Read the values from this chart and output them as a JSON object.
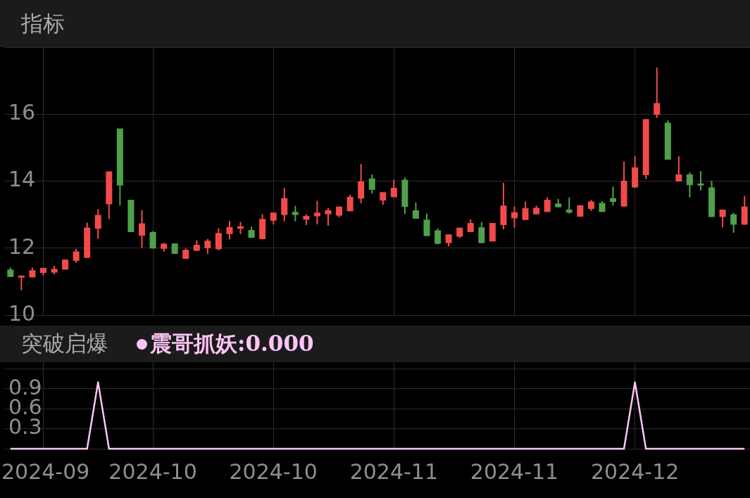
{
  "chart_data": [
    {
      "type": "candlestick",
      "title": "指标",
      "categories": [
        null,
        null,
        null,
        "2024-09",
        null,
        null,
        null,
        null,
        null,
        null,
        null,
        null,
        null,
        "2024-10",
        null,
        null,
        null,
        null,
        null,
        null,
        null,
        null,
        null,
        null,
        "2024-10",
        null,
        null,
        null,
        null,
        null,
        null,
        null,
        null,
        null,
        null,
        "2024-11",
        null,
        null,
        null,
        null,
        null,
        null,
        null,
        null,
        null,
        null,
        "2024-11",
        null,
        null,
        null,
        null,
        null,
        null,
        null,
        null,
        null,
        null,
        "2024-12",
        null,
        null,
        null,
        null,
        null,
        null,
        null,
        null,
        null,
        null
      ],
      "ohlc": [
        [
          11.36,
          11.42,
          11.14,
          11.14
        ],
        [
          11.12,
          11.18,
          10.74,
          11.18
        ],
        [
          11.13,
          11.42,
          11.12,
          11.34
        ],
        [
          11.26,
          11.41,
          11.18,
          11.41
        ],
        [
          11.27,
          11.47,
          11.22,
          11.38
        ],
        [
          11.36,
          11.66,
          11.36,
          11.66
        ],
        [
          11.62,
          11.98,
          11.56,
          11.9
        ],
        [
          11.71,
          12.76,
          11.71,
          12.61
        ],
        [
          12.58,
          13.16,
          12.28,
          12.99
        ],
        [
          13.31,
          14.29,
          12.87,
          14.29
        ],
        [
          15.57,
          15.57,
          13.27,
          13.87
        ],
        [
          13.44,
          13.44,
          12.48,
          12.48
        ],
        [
          12.37,
          13.13,
          12.01,
          12.74
        ],
        [
          12.48,
          12.5,
          11.99,
          11.99
        ],
        [
          11.98,
          12.16,
          11.9,
          12.13
        ],
        [
          12.14,
          12.14,
          11.83,
          11.83
        ],
        [
          11.68,
          11.99,
          11.68,
          11.95
        ],
        [
          11.92,
          12.23,
          11.92,
          12.1
        ],
        [
          12.0,
          12.27,
          11.83,
          12.22
        ],
        [
          11.97,
          12.59,
          11.93,
          12.45
        ],
        [
          12.42,
          12.81,
          12.26,
          12.63
        ],
        [
          12.58,
          12.78,
          12.42,
          12.65
        ],
        [
          12.54,
          12.64,
          12.31,
          12.31
        ],
        [
          12.27,
          13.01,
          12.27,
          12.87
        ],
        [
          12.82,
          13.06,
          12.71,
          13.06
        ],
        [
          12.99,
          13.8,
          12.8,
          13.49
        ],
        [
          13.08,
          13.26,
          12.8,
          12.99
        ],
        [
          12.85,
          13.01,
          12.69,
          12.96
        ],
        [
          12.95,
          13.41,
          12.71,
          13.06
        ],
        [
          13.01,
          13.19,
          12.67,
          13.13
        ],
        [
          12.97,
          13.24,
          12.92,
          13.24
        ],
        [
          13.1,
          13.59,
          13.1,
          13.53
        ],
        [
          13.48,
          14.51,
          13.34,
          13.99
        ],
        [
          14.08,
          14.2,
          13.63,
          13.74
        ],
        [
          13.42,
          13.67,
          13.29,
          13.67
        ],
        [
          13.52,
          14.04,
          13.52,
          13.8
        ],
        [
          14.04,
          14.11,
          13.02,
          13.23
        ],
        [
          13.13,
          13.36,
          12.88,
          12.88
        ],
        [
          12.85,
          13.03,
          12.36,
          12.36
        ],
        [
          12.53,
          12.59,
          12.11,
          12.13
        ],
        [
          12.15,
          12.41,
          12.05,
          12.41
        ],
        [
          12.34,
          12.61,
          12.31,
          12.61
        ],
        [
          12.48,
          12.86,
          12.48,
          12.75
        ],
        [
          12.62,
          12.78,
          12.15,
          12.15
        ],
        [
          12.2,
          12.75,
          12.2,
          12.75
        ],
        [
          12.69,
          13.95,
          12.56,
          13.27
        ],
        [
          12.89,
          13.24,
          12.61,
          13.07
        ],
        [
          12.84,
          13.39,
          12.84,
          13.19
        ],
        [
          13.01,
          13.27,
          13.01,
          13.2
        ],
        [
          13.08,
          13.52,
          13.08,
          13.44
        ],
        [
          13.33,
          13.47,
          13.22,
          13.22
        ],
        [
          13.15,
          13.51,
          13.03,
          13.06
        ],
        [
          12.94,
          13.28,
          12.94,
          13.28
        ],
        [
          13.17,
          13.44,
          13.11,
          13.39
        ],
        [
          13.35,
          13.4,
          13.08,
          13.08
        ],
        [
          13.49,
          13.84,
          13.27,
          13.38
        ],
        [
          13.24,
          14.59,
          13.24,
          14.01
        ],
        [
          13.81,
          14.74,
          13.81,
          14.41
        ],
        [
          14.18,
          15.85,
          14.06,
          15.85
        ],
        [
          15.98,
          17.39,
          15.89,
          16.33
        ],
        [
          15.74,
          15.81,
          14.64,
          14.64
        ],
        [
          13.99,
          14.74,
          13.99,
          14.2
        ],
        [
          14.2,
          14.26,
          13.51,
          13.88
        ],
        [
          13.93,
          14.3,
          13.72,
          13.87
        ],
        [
          13.81,
          14.01,
          12.93,
          12.93
        ],
        [
          12.93,
          13.15,
          12.62,
          13.15
        ],
        [
          13.01,
          13.05,
          12.46,
          12.7
        ],
        [
          12.7,
          13.56,
          12.7,
          13.24
        ]
      ],
      "colors": [
        "#4fa04a",
        "#f24a4a",
        "#f24a4a",
        "#f24a4a",
        "#f24a4a",
        "#f24a4a",
        "#f24a4a",
        "#f24a4a",
        "#f24a4a",
        "#f24a4a",
        "#4fa04a",
        "#4fa04a",
        "#f24a4a",
        "#4fa04a",
        "#f24a4a",
        "#4fa04a",
        "#f24a4a",
        "#f24a4a",
        "#f24a4a",
        "#f24a4a",
        "#f24a4a",
        "#f24a4a",
        "#4fa04a",
        "#f24a4a",
        "#f24a4a",
        "#f24a4a",
        "#4fa04a",
        "#f24a4a",
        "#f24a4a",
        "#f24a4a",
        "#f24a4a",
        "#f24a4a",
        "#f24a4a",
        "#4fa04a",
        "#f24a4a",
        "#f24a4a",
        "#4fa04a",
        "#4fa04a",
        "#4fa04a",
        "#4fa04a",
        "#f24a4a",
        "#f24a4a",
        "#f24a4a",
        "#4fa04a",
        "#f24a4a",
        "#f24a4a",
        "#f24a4a",
        "#f24a4a",
        "#f24a4a",
        "#f24a4a",
        "#4fa04a",
        "#4fa04a",
        "#f24a4a",
        "#f24a4a",
        "#4fa04a",
        "#4fa04a",
        "#f24a4a",
        "#f24a4a",
        "#f24a4a",
        "#f24a4a",
        "#4fa04a",
        "#f24a4a",
        "#4fa04a",
        "#4fa04a",
        "#4fa04a",
        "#f24a4a",
        "#4fa04a",
        "#f24a4a"
      ],
      "ylim": [
        10,
        18
      ],
      "yticks": [
        10,
        12,
        14,
        16,
        {
          "value": 18,
          "label": null
        }
      ],
      "grid": true,
      "tick_labels": "y"
    },
    {
      "type": "line",
      "title": "突破启爆",
      "categories": [
        null,
        null,
        null,
        "2024-09",
        null,
        null,
        null,
        null,
        null,
        null,
        null,
        null,
        null,
        "2024-10",
        null,
        null,
        null,
        null,
        null,
        null,
        null,
        null,
        null,
        null,
        "2024-10",
        null,
        null,
        null,
        null,
        null,
        null,
        null,
        null,
        null,
        null,
        "2024-11",
        null,
        null,
        null,
        null,
        null,
        null,
        null,
        null,
        null,
        null,
        "2024-11",
        null,
        null,
        null,
        null,
        null,
        null,
        null,
        null,
        null,
        null,
        "2024-12",
        null,
        null,
        null,
        null,
        null,
        null,
        null,
        null,
        null,
        null
      ],
      "series": [
        {
          "name": "震哥抓妖:0.000",
          "color": "#ffc4f7",
          "values": [
            0,
            0,
            0,
            0,
            0,
            0,
            0,
            0,
            1,
            0,
            0,
            0,
            0,
            0,
            0,
            0,
            0,
            0,
            0,
            0,
            0,
            0,
            0,
            0,
            0,
            0,
            0,
            0,
            0,
            0,
            0,
            0,
            0,
            0,
            0,
            0,
            0,
            0,
            0,
            0,
            0,
            0,
            0,
            0,
            0,
            0,
            0,
            0,
            0,
            0,
            0,
            0,
            0,
            0,
            0,
            0,
            0,
            1,
            0,
            0,
            0,
            0,
            0,
            0,
            0,
            0,
            0,
            0
          ]
        }
      ],
      "ylim": [
        0,
        1.3
      ],
      "yticks": [
        {
          "value": 0,
          "label": null
        },
        0.3,
        0.6,
        0.9,
        {
          "value": 1.2,
          "label": null
        }
      ],
      "grid": true,
      "legend": "top left",
      "marker": "none"
    }
  ]
}
